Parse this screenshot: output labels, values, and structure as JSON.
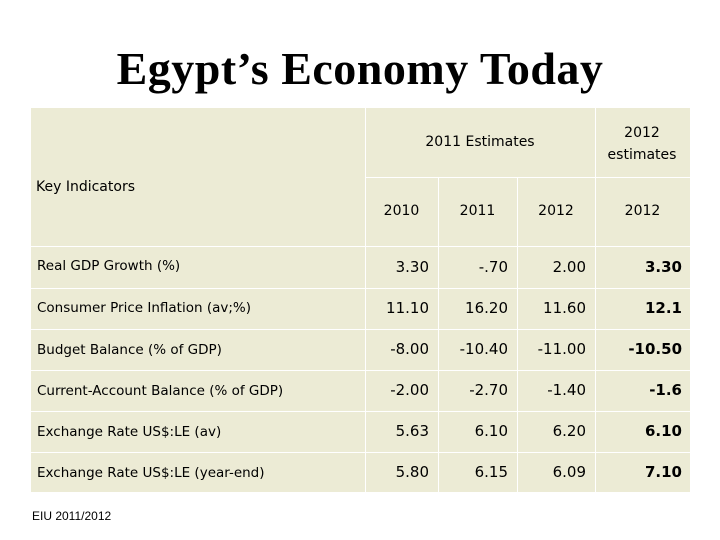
{
  "title": "Egypt’s Economy Today",
  "table": {
    "row_header": "Key Indicators",
    "group_header": "2011 Estimates",
    "last_col_header": "2012 estimates",
    "columns": [
      "2010",
      "2011",
      "2012",
      "2012"
    ],
    "rows": [
      {
        "label": "Real GDP Growth (%)",
        "values": [
          "3.30",
          "-.70",
          "2.00",
          "3.30"
        ]
      },
      {
        "label": "Consumer Price Inflation (av;%)",
        "values": [
          "11.10",
          "16.20",
          "11.60",
          "12.1"
        ]
      },
      {
        "label": "Budget Balance (% of GDP)",
        "values": [
          "-8.00",
          "-10.40",
          "-11.00",
          "-10.50"
        ]
      },
      {
        "label": "Current-Account Balance (% of GDP)",
        "values": [
          "-2.00",
          "-2.70",
          "-1.40",
          "-1.6"
        ]
      },
      {
        "label": "Exchange Rate US$:LE (av)",
        "values": [
          "5.63",
          "6.10",
          "6.20",
          "6.10"
        ]
      },
      {
        "label": "Exchange Rate US$:LE (year-end)",
        "values": [
          "5.80",
          "6.15",
          "6.09",
          "7.10"
        ]
      }
    ]
  },
  "source": "EIU 2011/2012"
}
